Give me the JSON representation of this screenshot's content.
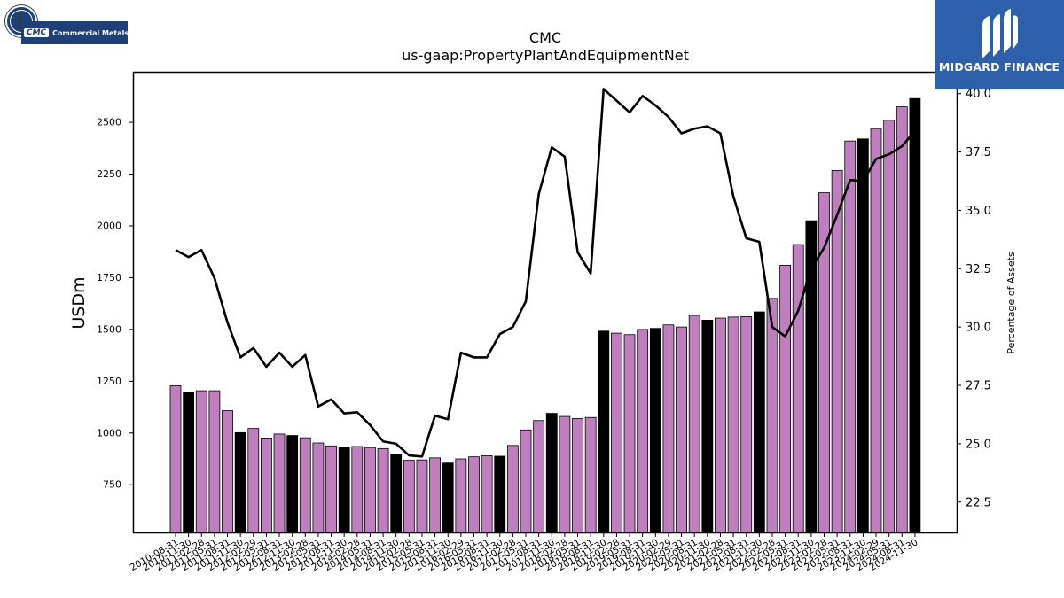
{
  "logos": {
    "cmc": {
      "tag": "CMC",
      "name": "Commercial Metals",
      "color": "#1f3f78"
    },
    "midgard": {
      "name": "MIDGARD FINANCE",
      "color": "#2d5fab"
    }
  },
  "chart_data": {
    "type": "bar",
    "title": "CMC",
    "subtitle": "us-gaap:PropertyPlantAndEquipmentNet",
    "ylabel": "USDm",
    "y2label": "Percentage of Assets",
    "ylim": [
      520,
      2740
    ],
    "y2lim": [
      21.2,
      40.9
    ],
    "yticks": [
      750,
      1000,
      1250,
      1500,
      1750,
      2000,
      2250,
      2500
    ],
    "y2ticks": [
      22.5,
      25.0,
      27.5,
      30.0,
      32.5,
      35.0,
      37.5,
      40.0
    ],
    "colors": {
      "quarter": "#bf7fbf",
      "fiscal_year_end": "#000000",
      "line": "#000000"
    },
    "categories": [
      "2010-08-31",
      "2010-11-30",
      "2011-02-28",
      "2011-05-31",
      "2011-08-31",
      "2011-11-30",
      "2012-02-29",
      "2012-05-31",
      "2012-08-31",
      "2012-11-30",
      "2013-02-28",
      "2013-05-31",
      "2013-08-31",
      "2013-11-30",
      "2014-02-28",
      "2014-05-31",
      "2014-08-31",
      "2014-11-30",
      "2015-02-28",
      "2015-05-31",
      "2015-08-31",
      "2015-11-30",
      "2016-02-29",
      "2016-05-31",
      "2016-08-31",
      "2016-11-30",
      "2017-02-28",
      "2017-05-31",
      "2017-08-31",
      "2017-11-30",
      "2018-02-28",
      "2018-05-31",
      "2018-08-31",
      "2018-11-30",
      "2019-02-28",
      "2019-05-31",
      "2019-08-31",
      "2019-11-30",
      "2020-02-29",
      "2020-05-31",
      "2020-08-31",
      "2020-11-30",
      "2021-02-28",
      "2021-05-31",
      "2021-08-31",
      "2021-11-30",
      "2022-02-28",
      "2022-05-31",
      "2022-08-31",
      "2022-11-30",
      "2023-02-28",
      "2023-05-31",
      "2023-08-31",
      "2023-11-30",
      "2024-02-29",
      "2024-05-31",
      "2024-08-31",
      "2024-11-30"
    ],
    "series": [
      {
        "values": [
          1228,
          1195,
          1204,
          1204,
          1108,
          1002,
          1022,
          976,
          995,
          988,
          977,
          952,
          938,
          930,
          935,
          930,
          925,
          898,
          868,
          870,
          880,
          855,
          875,
          885,
          890,
          888,
          940,
          1015,
          1060,
          1095,
          1080,
          1070,
          1075,
          1492,
          1482,
          1475,
          1500,
          1505,
          1522,
          1512,
          1568,
          1545,
          1555,
          1560,
          1562,
          1585,
          1650,
          1810,
          1910,
          2025,
          2160,
          2268,
          2410,
          2420,
          2470,
          2510,
          2575,
          2615
        ],
        "fiscal_year_end": [
          false,
          true,
          false,
          false,
          false,
          true,
          false,
          false,
          false,
          true,
          false,
          false,
          false,
          true,
          false,
          false,
          false,
          true,
          false,
          false,
          false,
          true,
          false,
          false,
          false,
          true,
          false,
          false,
          false,
          true,
          false,
          false,
          false,
          true,
          false,
          false,
          false,
          true,
          false,
          false,
          false,
          true,
          false,
          false,
          false,
          true,
          false,
          false,
          false,
          true,
          false,
          false,
          false,
          true,
          false,
          false,
          false,
          true
        ]
      },
      {
        "axis": "right",
        "type": "line",
        "values": [
          33.3,
          33.0,
          33.3,
          32.1,
          30.2,
          28.7,
          29.1,
          28.3,
          28.9,
          28.3,
          28.8,
          26.6,
          26.9,
          26.3,
          26.35,
          25.8,
          25.1,
          25.0,
          24.5,
          24.45,
          26.2,
          26.05,
          28.9,
          28.7,
          28.7,
          29.7,
          30.0,
          31.1,
          35.7,
          37.7,
          37.3,
          33.2,
          32.3,
          40.2,
          39.7,
          39.2,
          39.9,
          39.5,
          39.0,
          38.3,
          38.5,
          38.6,
          38.3,
          35.6,
          33.8,
          33.65,
          30.0,
          29.6,
          30.7,
          32.5,
          33.4,
          34.8,
          36.3,
          36.25,
          37.2,
          37.4,
          37.75,
          38.4
        ]
      }
    ]
  }
}
